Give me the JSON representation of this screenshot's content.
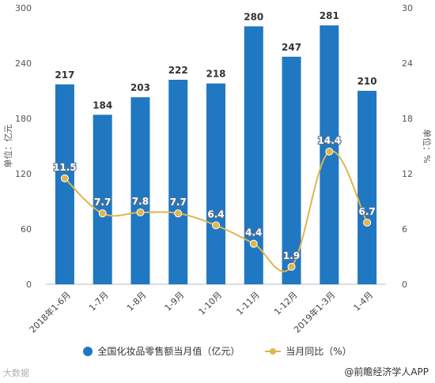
{
  "chart_data": {
    "type": "bar",
    "categories": [
      "2018年1-6月",
      "1-7月",
      "1-8月",
      "1-9月",
      "1-10月",
      "1-11月",
      "1-12月",
      "2019年1-3月",
      "1-4月"
    ],
    "series": [
      {
        "name": "全国化妆品零售额当月值（亿元）",
        "type": "bar",
        "axis": "left",
        "color": "#1f78c1",
        "values": [
          217,
          184,
          203,
          222,
          218,
          280,
          247,
          281,
          210
        ]
      },
      {
        "name": "当月同比（%）",
        "type": "line",
        "axis": "right",
        "color": "#e0b54e",
        "values": [
          11.5,
          7.7,
          7.8,
          7.7,
          6.4,
          4.4,
          1.9,
          14.4,
          6.7
        ]
      }
    ],
    "ylabel": "单位：亿元",
    "y2label": "单位：%",
    "ylim": [
      0,
      300
    ],
    "y2lim": [
      0,
      30
    ],
    "yticks": [
      "0",
      "60",
      "120",
      "180",
      "240",
      "300"
    ],
    "y2ticks": [
      "0",
      "6",
      "12",
      "18",
      "24",
      "30"
    ],
    "legend_position": "bottom",
    "grid": false
  },
  "legend": {
    "bar_label": "全国化妆品零售额当月值（亿元）",
    "line_label": "当月同比（%）"
  },
  "footer": {
    "left": "大数据",
    "right": "@前瞻经济学人APP"
  }
}
